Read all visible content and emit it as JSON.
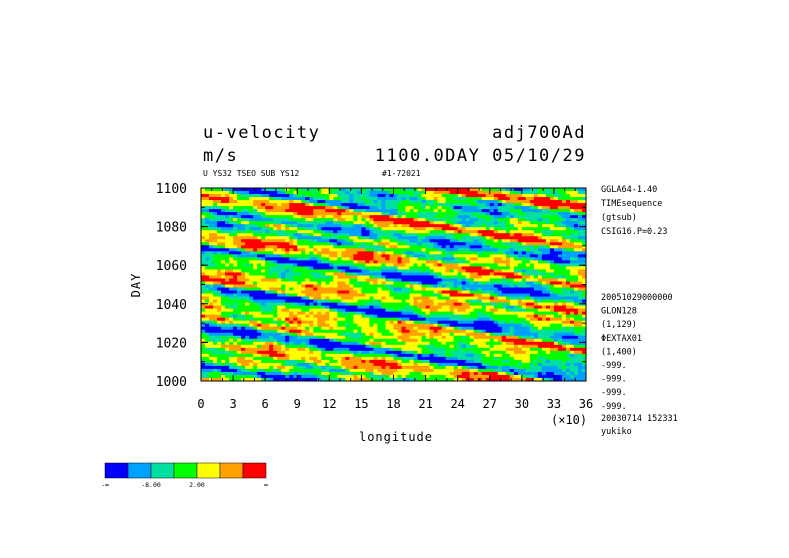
{
  "chart_data": {
    "type": "heatmap",
    "title_left_1": "u-velocity",
    "title_left_2": "m/s",
    "title_right_1": "adj700Ad",
    "title_right_2": "1100.0DAY 05/10/29",
    "subtitle_left": "U YS32 TSEO SUB YS12",
    "subtitle_mid": "#1-72021",
    "xlabel": "longitude",
    "ylabel": "DAY",
    "x_multiplier": "(×10)",
    "xlim": [
      0,
      36
    ],
    "ylim": [
      1000,
      1100
    ],
    "x_ticks": [
      "0",
      "3",
      "6",
      "9",
      "12",
      "15",
      "18",
      "21",
      "24",
      "27",
      "30",
      "33",
      "36"
    ],
    "y_ticks": [
      "1000",
      "1020",
      "1040",
      "1060",
      "1080",
      "1100"
    ],
    "color_levels": [
      "#0000ff",
      "#00a0ff",
      "#00e0a0",
      "#00ff00",
      "#ffff00",
      "#ffa000",
      "#ff0000"
    ],
    "colorbar_labels": [
      "-∞",
      "-8.00",
      "2.00",
      "∞"
    ],
    "side_info_top": [
      "GGLA64-1.40",
      "TIMEsequence",
      "(gtsub)",
      "CSIG16.P=0.23"
    ],
    "side_info_bottom": [
      "20051029000000",
      "GLON128",
      "(1,129)",
      "ΦEXTAX01",
      "(1,400)",
      "-999.",
      "-999.",
      "-999.",
      "-999."
    ],
    "footer": [
      "20030714 152331",
      "yukiko"
    ]
  }
}
